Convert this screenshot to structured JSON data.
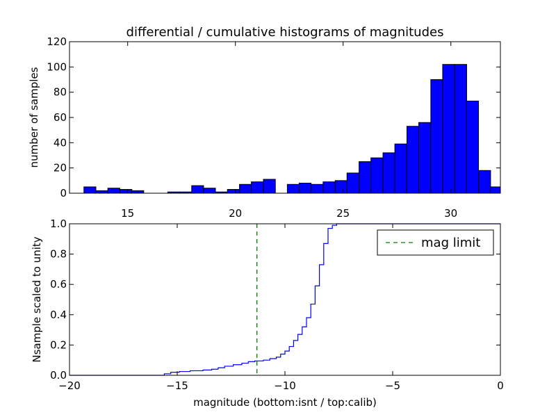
{
  "chart_data": [
    {
      "type": "bar",
      "title": "differential / cumulative histograms of magnitudes",
      "xlabel": "",
      "ylabel": "number of samples",
      "xlim": [
        12.3,
        32.3
      ],
      "ylim": [
        0,
        120
      ],
      "xticks": [
        "15",
        "20",
        "25",
        "30"
      ],
      "yticks": [
        "0",
        "20",
        "40",
        "60",
        "80",
        "100",
        "120"
      ],
      "bar_color": "#0000ff",
      "bin_width": 0.555,
      "bins": [
        {
          "x0": 12.97,
          "count": 5
        },
        {
          "x0": 13.53,
          "count": 2
        },
        {
          "x0": 14.08,
          "count": 4
        },
        {
          "x0": 14.64,
          "count": 3
        },
        {
          "x0": 15.19,
          "count": 2
        },
        {
          "x0": 15.75,
          "count": 0
        },
        {
          "x0": 16.3,
          "count": 0
        },
        {
          "x0": 16.86,
          "count": 1
        },
        {
          "x0": 17.41,
          "count": 1
        },
        {
          "x0": 17.97,
          "count": 6
        },
        {
          "x0": 18.52,
          "count": 4
        },
        {
          "x0": 19.08,
          "count": 1
        },
        {
          "x0": 19.63,
          "count": 3
        },
        {
          "x0": 20.19,
          "count": 7
        },
        {
          "x0": 20.74,
          "count": 9
        },
        {
          "x0": 21.3,
          "count": 11
        },
        {
          "x0": 21.85,
          "count": 0
        },
        {
          "x0": 22.41,
          "count": 7
        },
        {
          "x0": 22.96,
          "count": 8
        },
        {
          "x0": 23.52,
          "count": 7
        },
        {
          "x0": 24.07,
          "count": 9
        },
        {
          "x0": 24.63,
          "count": 10
        },
        {
          "x0": 25.18,
          "count": 16
        },
        {
          "x0": 25.74,
          "count": 25
        },
        {
          "x0": 26.29,
          "count": 28
        },
        {
          "x0": 26.85,
          "count": 32
        },
        {
          "x0": 27.4,
          "count": 39
        },
        {
          "x0": 27.96,
          "count": 53
        },
        {
          "x0": 28.51,
          "count": 56
        },
        {
          "x0": 29.07,
          "count": 90
        },
        {
          "x0": 29.62,
          "count": 102
        },
        {
          "x0": 30.18,
          "count": 102
        },
        {
          "x0": 30.73,
          "count": 73
        },
        {
          "x0": 31.29,
          "count": 18
        },
        {
          "x0": 31.84,
          "count": 5
        }
      ]
    },
    {
      "type": "line",
      "title": "",
      "xlabel": "magnitude (bottom:isnt / top:calib)",
      "ylabel": "Nsample scaled to unity",
      "xlim": [
        -20,
        0
      ],
      "ylim": [
        0,
        1.0
      ],
      "xticks": [
        "−20",
        "−15",
        "−10",
        "−5",
        "0"
      ],
      "yticks": [
        "0.0",
        "0.2",
        "0.4",
        "0.6",
        "0.8",
        "1.0"
      ],
      "legend": {
        "position": "upper-right",
        "entries": [
          "mag limit"
        ]
      },
      "mag_limit": -11.3,
      "mag_limit_color": "#008000",
      "line_color": "#0000ff",
      "cumulative": {
        "x": [
          -20.0,
          -15.6,
          -15.3,
          -14.9,
          -14.4,
          -13.8,
          -13.4,
          -13.1,
          -12.8,
          -12.4,
          -12.0,
          -11.7,
          -11.4,
          -11.0,
          -10.7,
          -10.4,
          -10.2,
          -10.0,
          -9.8,
          -9.6,
          -9.4,
          -9.2,
          -9.0,
          -8.8,
          -8.6,
          -8.4,
          -8.2,
          -8.0,
          -7.8,
          -7.6,
          -7.4,
          -7.2,
          0.0
        ],
        "y": [
          0.0,
          0.01,
          0.02,
          0.025,
          0.03,
          0.035,
          0.04,
          0.05,
          0.06,
          0.07,
          0.08,
          0.09,
          0.095,
          0.1,
          0.11,
          0.12,
          0.14,
          0.16,
          0.19,
          0.23,
          0.27,
          0.32,
          0.38,
          0.47,
          0.59,
          0.73,
          0.87,
          0.97,
          0.99,
          1.0,
          1.0,
          1.0,
          1.0
        ]
      }
    }
  ]
}
